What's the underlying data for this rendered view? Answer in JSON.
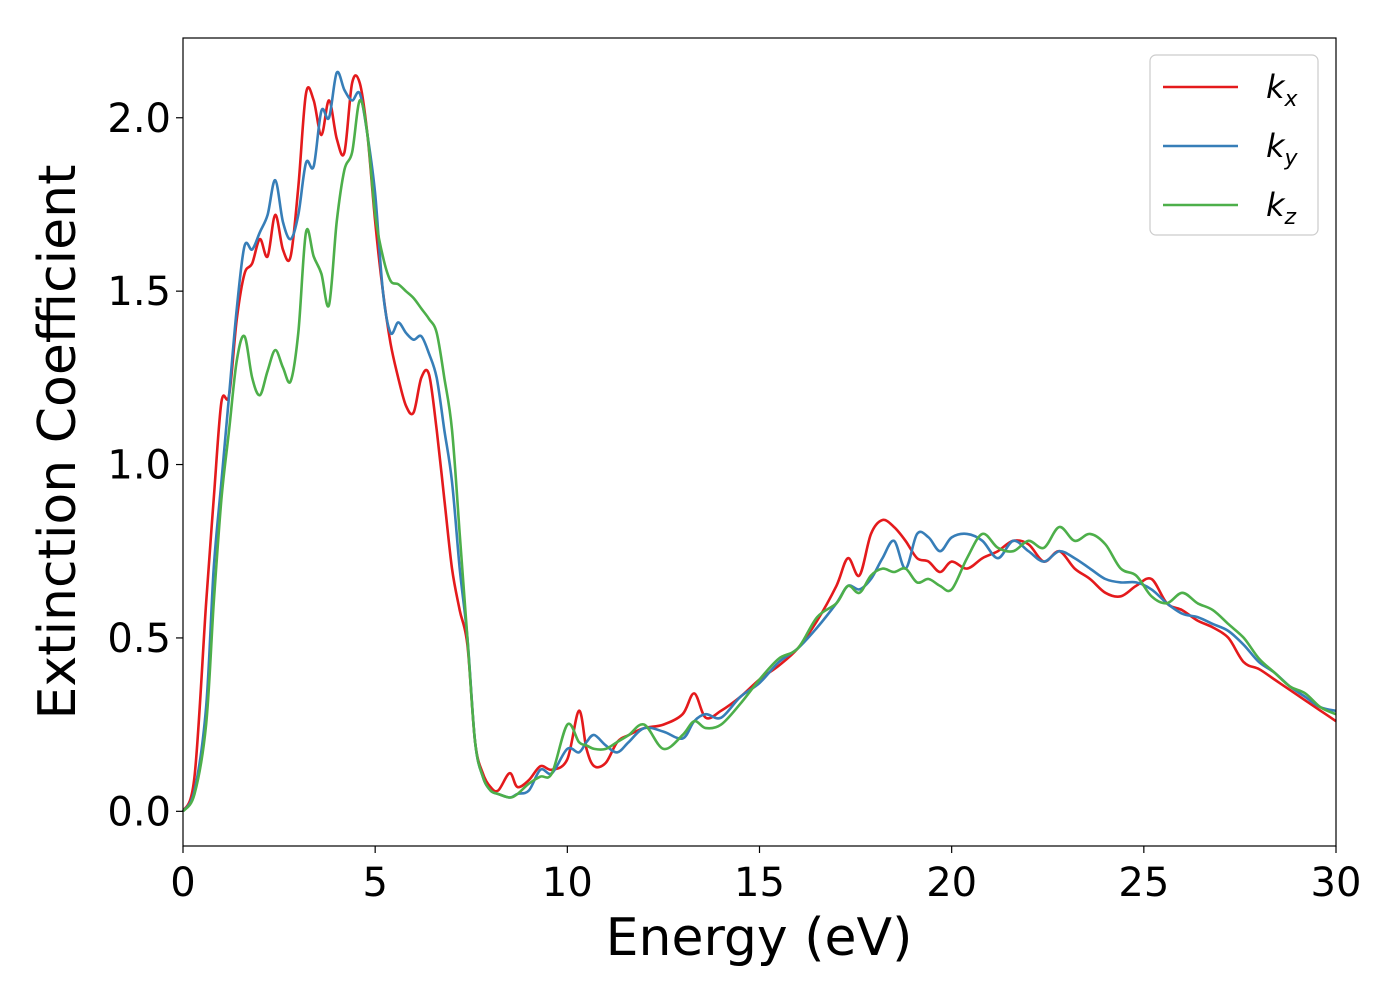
{
  "chart_data": {
    "type": "line",
    "xlabel": "Energy (eV)",
    "ylabel": "Extinction Coefficient",
    "xlim": [
      0,
      30
    ],
    "ylim": [
      -0.1,
      2.23
    ],
    "xticks": [
      "0",
      "5",
      "10",
      "15",
      "20",
      "25",
      "30"
    ],
    "yticks": [
      "0.0",
      "0.5",
      "1.0",
      "1.5",
      "2.0"
    ],
    "legend_position": "top-right",
    "grid": false,
    "series": [
      {
        "name": "k",
        "subscript": "x",
        "color": "#e41a1c",
        "x": [
          0,
          0.3,
          0.6,
          0.8,
          1.0,
          1.2,
          1.4,
          1.6,
          1.8,
          2.0,
          2.2,
          2.4,
          2.6,
          2.8,
          3.0,
          3.2,
          3.4,
          3.6,
          3.8,
          4.0,
          4.2,
          4.4,
          4.6,
          4.8,
          5.0,
          5.2,
          5.4,
          5.6,
          5.8,
          6.0,
          6.2,
          6.4,
          6.6,
          6.8,
          7.0,
          7.2,
          7.4,
          7.6,
          7.8,
          8.0,
          8.2,
          8.5,
          8.7,
          9.0,
          9.3,
          9.6,
          10.0,
          10.3,
          10.5,
          10.7,
          11.0,
          11.3,
          11.6,
          12.0,
          12.5,
          13.0,
          13.3,
          13.6,
          14.0,
          14.5,
          15.0,
          15.5,
          16.0,
          16.5,
          17.0,
          17.3,
          17.6,
          17.9,
          18.2,
          18.5,
          18.8,
          19.1,
          19.4,
          19.7,
          20.0,
          20.4,
          20.8,
          21.2,
          21.6,
          22.0,
          22.4,
          22.8,
          23.2,
          23.6,
          24.0,
          24.4,
          24.8,
          25.2,
          25.6,
          26.0,
          26.4,
          26.8,
          27.2,
          27.6,
          28.0,
          28.4,
          28.8,
          29.2,
          29.6,
          30.0
        ],
        "y": [
          0.0,
          0.1,
          0.6,
          0.9,
          1.18,
          1.2,
          1.42,
          1.55,
          1.58,
          1.65,
          1.6,
          1.72,
          1.62,
          1.6,
          1.8,
          2.07,
          2.05,
          1.95,
          2.05,
          1.94,
          1.9,
          2.1,
          2.1,
          1.95,
          1.7,
          1.5,
          1.35,
          1.25,
          1.17,
          1.15,
          1.25,
          1.26,
          1.1,
          0.9,
          0.7,
          0.58,
          0.48,
          0.2,
          0.11,
          0.07,
          0.06,
          0.11,
          0.07,
          0.09,
          0.13,
          0.12,
          0.15,
          0.29,
          0.18,
          0.13,
          0.14,
          0.2,
          0.22,
          0.24,
          0.25,
          0.28,
          0.34,
          0.27,
          0.29,
          0.33,
          0.38,
          0.42,
          0.47,
          0.55,
          0.65,
          0.73,
          0.68,
          0.8,
          0.84,
          0.82,
          0.78,
          0.73,
          0.72,
          0.69,
          0.72,
          0.7,
          0.73,
          0.75,
          0.78,
          0.77,
          0.72,
          0.75,
          0.7,
          0.67,
          0.63,
          0.62,
          0.65,
          0.67,
          0.6,
          0.58,
          0.55,
          0.53,
          0.5,
          0.43,
          0.41,
          0.38,
          0.35,
          0.32,
          0.29,
          0.26
        ]
      },
      {
        "name": "k",
        "subscript": "y",
        "color": "#377eb8",
        "x": [
          0,
          0.3,
          0.6,
          0.8,
          1.0,
          1.2,
          1.4,
          1.6,
          1.8,
          2.0,
          2.2,
          2.4,
          2.6,
          2.8,
          3.0,
          3.2,
          3.4,
          3.6,
          3.8,
          4.0,
          4.2,
          4.4,
          4.6,
          4.8,
          5.0,
          5.2,
          5.4,
          5.6,
          5.8,
          6.0,
          6.2,
          6.4,
          6.6,
          6.8,
          7.0,
          7.2,
          7.4,
          7.6,
          7.8,
          8.0,
          8.2,
          8.5,
          8.7,
          9.0,
          9.3,
          9.6,
          10.0,
          10.3,
          10.5,
          10.7,
          11.0,
          11.3,
          11.6,
          12.0,
          12.5,
          13.0,
          13.3,
          13.6,
          14.0,
          14.5,
          15.0,
          15.5,
          16.0,
          16.5,
          17.0,
          17.3,
          17.6,
          17.9,
          18.2,
          18.5,
          18.8,
          19.1,
          19.4,
          19.7,
          20.0,
          20.4,
          20.8,
          21.2,
          21.6,
          22.0,
          22.4,
          22.8,
          23.2,
          23.6,
          24.0,
          24.4,
          24.8,
          25.2,
          25.6,
          26.0,
          26.4,
          26.8,
          27.2,
          27.6,
          28.0,
          28.4,
          28.8,
          29.2,
          29.6,
          30.0
        ],
        "y": [
          0.0,
          0.06,
          0.3,
          0.7,
          0.95,
          1.2,
          1.45,
          1.63,
          1.62,
          1.67,
          1.72,
          1.82,
          1.7,
          1.65,
          1.72,
          1.87,
          1.86,
          2.02,
          2.0,
          2.13,
          2.08,
          2.05,
          2.07,
          1.95,
          1.78,
          1.5,
          1.38,
          1.41,
          1.38,
          1.36,
          1.37,
          1.32,
          1.25,
          1.1,
          0.95,
          0.7,
          0.5,
          0.2,
          0.1,
          0.06,
          0.05,
          0.04,
          0.05,
          0.06,
          0.12,
          0.11,
          0.18,
          0.17,
          0.2,
          0.22,
          0.19,
          0.17,
          0.2,
          0.24,
          0.23,
          0.21,
          0.26,
          0.28,
          0.27,
          0.33,
          0.37,
          0.43,
          0.47,
          0.53,
          0.6,
          0.65,
          0.64,
          0.67,
          0.73,
          0.78,
          0.7,
          0.8,
          0.79,
          0.75,
          0.79,
          0.8,
          0.78,
          0.73,
          0.78,
          0.75,
          0.72,
          0.75,
          0.73,
          0.7,
          0.67,
          0.66,
          0.66,
          0.64,
          0.6,
          0.57,
          0.56,
          0.54,
          0.52,
          0.48,
          0.43,
          0.4,
          0.36,
          0.33,
          0.3,
          0.29
        ]
      },
      {
        "name": "k",
        "subscript": "z",
        "color": "#4daf4a",
        "x": [
          0,
          0.3,
          0.6,
          0.8,
          1.0,
          1.2,
          1.4,
          1.6,
          1.8,
          2.0,
          2.2,
          2.4,
          2.6,
          2.8,
          3.0,
          3.2,
          3.4,
          3.6,
          3.8,
          4.0,
          4.2,
          4.4,
          4.6,
          4.8,
          5.0,
          5.2,
          5.4,
          5.6,
          5.8,
          6.0,
          6.2,
          6.4,
          6.6,
          6.8,
          7.0,
          7.2,
          7.4,
          7.6,
          7.8,
          8.0,
          8.2,
          8.5,
          8.7,
          9.0,
          9.3,
          9.6,
          10.0,
          10.3,
          10.5,
          10.7,
          11.0,
          11.3,
          11.6,
          12.0,
          12.5,
          13.0,
          13.3,
          13.6,
          14.0,
          14.5,
          15.0,
          15.5,
          16.0,
          16.5,
          17.0,
          17.3,
          17.6,
          17.9,
          18.2,
          18.5,
          18.8,
          19.1,
          19.4,
          19.7,
          20.0,
          20.4,
          20.8,
          21.2,
          21.6,
          22.0,
          22.4,
          22.8,
          23.2,
          23.6,
          24.0,
          24.4,
          24.8,
          25.2,
          25.6,
          26.0,
          26.4,
          26.8,
          27.2,
          27.6,
          28.0,
          28.4,
          28.8,
          29.2,
          29.6,
          30.0
        ],
        "y": [
          0.0,
          0.05,
          0.25,
          0.6,
          0.9,
          1.1,
          1.3,
          1.37,
          1.25,
          1.2,
          1.27,
          1.33,
          1.28,
          1.24,
          1.38,
          1.67,
          1.6,
          1.55,
          1.46,
          1.7,
          1.85,
          1.9,
          2.05,
          1.95,
          1.72,
          1.6,
          1.53,
          1.52,
          1.5,
          1.48,
          1.45,
          1.42,
          1.38,
          1.25,
          1.1,
          0.8,
          0.5,
          0.2,
          0.1,
          0.06,
          0.05,
          0.04,
          0.05,
          0.08,
          0.1,
          0.11,
          0.25,
          0.2,
          0.19,
          0.18,
          0.18,
          0.2,
          0.22,
          0.25,
          0.18,
          0.22,
          0.26,
          0.24,
          0.25,
          0.31,
          0.38,
          0.44,
          0.47,
          0.56,
          0.6,
          0.65,
          0.63,
          0.68,
          0.7,
          0.69,
          0.7,
          0.66,
          0.67,
          0.65,
          0.64,
          0.73,
          0.8,
          0.76,
          0.75,
          0.78,
          0.76,
          0.82,
          0.78,
          0.8,
          0.77,
          0.7,
          0.68,
          0.62,
          0.6,
          0.63,
          0.6,
          0.58,
          0.54,
          0.5,
          0.44,
          0.4,
          0.36,
          0.34,
          0.3,
          0.28
        ]
      }
    ]
  }
}
